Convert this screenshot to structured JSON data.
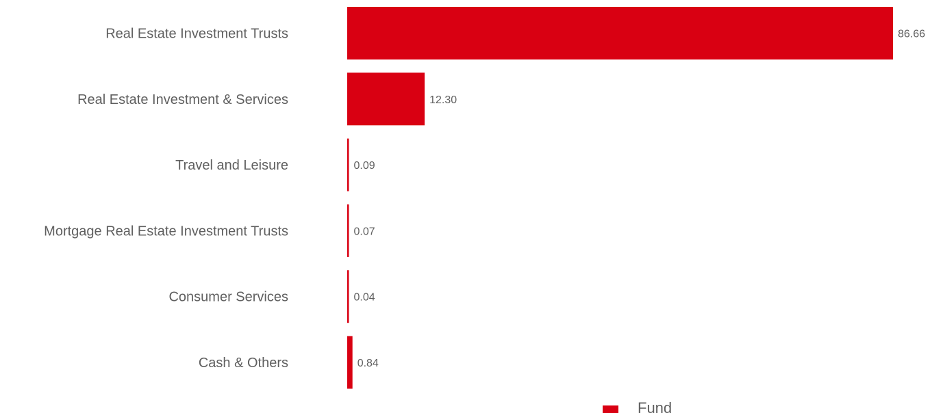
{
  "chart_data": {
    "type": "bar",
    "orientation": "horizontal",
    "categories": [
      "Real Estate Investment Trusts",
      "Real Estate Investment & Services",
      "Travel and Leisure",
      "Mortgage Real Estate Investment Trusts",
      "Consumer Services",
      "Cash & Others"
    ],
    "series": [
      {
        "name": "Fund",
        "values": [
          86.66,
          12.3,
          0.09,
          0.07,
          0.04,
          0.84
        ],
        "labels": [
          "86.66",
          "12.30",
          "0.09",
          "0.07",
          "0.04",
          "0.84"
        ]
      }
    ],
    "xlim": [
      0,
      86.66
    ],
    "grid": false,
    "legend_position": "bottom",
    "colors": {
      "bar": "#d90012",
      "category_text": "#5f5f5f",
      "value_text": "#5f5f5f"
    }
  }
}
